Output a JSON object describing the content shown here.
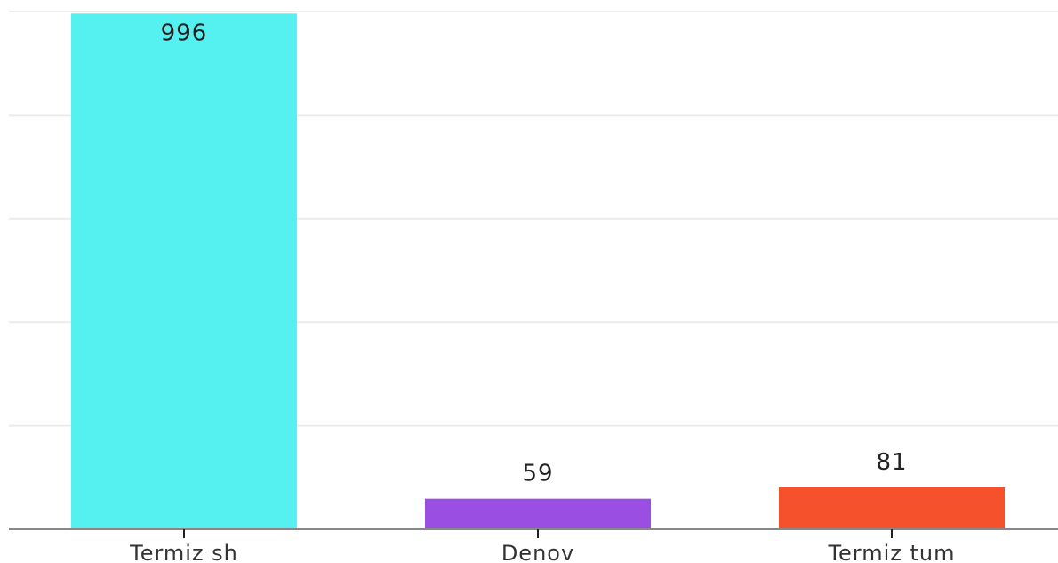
{
  "chart_data": {
    "type": "bar",
    "title": "",
    "xlabel": "",
    "ylabel": "",
    "categories": [
      "Termiz sh",
      "Denov",
      "Termiz tum"
    ],
    "values": [
      996,
      59,
      81
    ],
    "colors": [
      "#55f0f0",
      "#9b4ee2",
      "#f4512c"
    ],
    "ylim": [
      0,
      1000
    ],
    "gridlines": [
      0,
      200,
      400,
      600,
      800,
      1000
    ],
    "grid": true,
    "legend": "none"
  }
}
